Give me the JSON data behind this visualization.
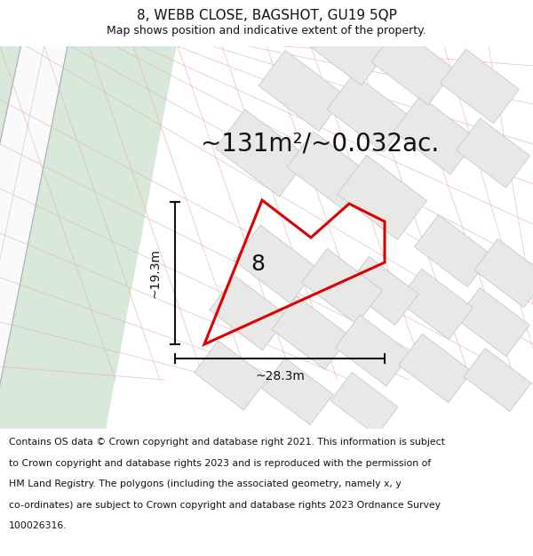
{
  "title": "8, WEBB CLOSE, BAGSHOT, GU19 5QP",
  "subtitle": "Map shows position and indicative extent of the property.",
  "footer_lines": [
    "Contains OS data © Crown copyright and database right 2021. This information is subject",
    "to Crown copyright and database rights 2023 and is reproduced with the permission of",
    "HM Land Registry. The polygons (including the associated geometry, namely x, y",
    "co-ordinates) are subject to Crown copyright and database rights 2023 Ordnance Survey",
    "100026316."
  ],
  "area_text": "~131m²/~0.032ac.",
  "dim_width": "~28.3m",
  "dim_height": "~19.3m",
  "label": "8",
  "map_bg": "#f2f2f0",
  "green_color": "#d8e8da",
  "road_color": "#ffffff",
  "building_fill": "#e8e8e6",
  "building_stroke": "#e8b0b0",
  "building_stroke2": "#c8c8c6",
  "highlight_stroke": "#dd0000",
  "title_fontsize": 11,
  "subtitle_fontsize": 9,
  "footer_fontsize": 7.8,
  "area_fontsize": 20,
  "label_fontsize": 18,
  "dim_fontsize": 10
}
